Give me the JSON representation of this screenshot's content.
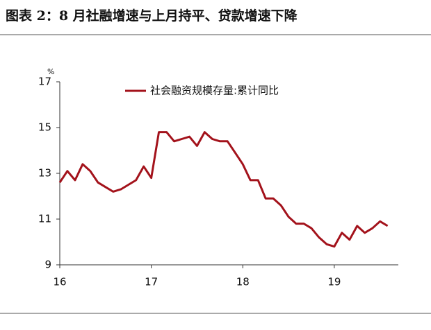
{
  "chart_data": {
    "type": "line",
    "title": "图表 2：8 月社融增速与上月持平、贷款增速下降",
    "y_unit": "%",
    "x": [
      16,
      16.083,
      16.167,
      16.25,
      16.333,
      16.417,
      16.5,
      16.583,
      16.667,
      16.75,
      16.833,
      16.917,
      17,
      17.083,
      17.167,
      17.25,
      17.333,
      17.417,
      17.5,
      17.583,
      17.667,
      17.75,
      17.833,
      17.917,
      18,
      18.083,
      18.167,
      18.25,
      18.333,
      18.417,
      18.5,
      18.583,
      18.667,
      18.75,
      18.833,
      18.917,
      19,
      19.083,
      19.167,
      19.25,
      19.333,
      19.417,
      19.5,
      19.583
    ],
    "series": [
      {
        "name": "社会融资规模存量:累计同比",
        "color": "#a3121b",
        "values": [
          12.6,
          13.1,
          12.7,
          13.4,
          13.1,
          12.6,
          12.4,
          12.2,
          12.3,
          12.5,
          12.7,
          13.3,
          12.8,
          14.8,
          14.8,
          14.4,
          14.5,
          14.6,
          14.2,
          14.8,
          14.5,
          14.4,
          14.4,
          13.9,
          13.4,
          12.7,
          12.7,
          11.9,
          11.9,
          11.6,
          11.1,
          10.8,
          10.8,
          10.6,
          10.2,
          9.9,
          9.8,
          10.4,
          10.1,
          10.7,
          10.4,
          10.6,
          10.9,
          10.7
        ]
      }
    ],
    "xlim": [
      16,
      19.7
    ],
    "xticks": [
      16,
      17,
      18,
      19
    ],
    "ylim": [
      9,
      17
    ],
    "yticks": [
      9,
      11,
      13,
      15,
      17
    ],
    "legend": "top"
  }
}
